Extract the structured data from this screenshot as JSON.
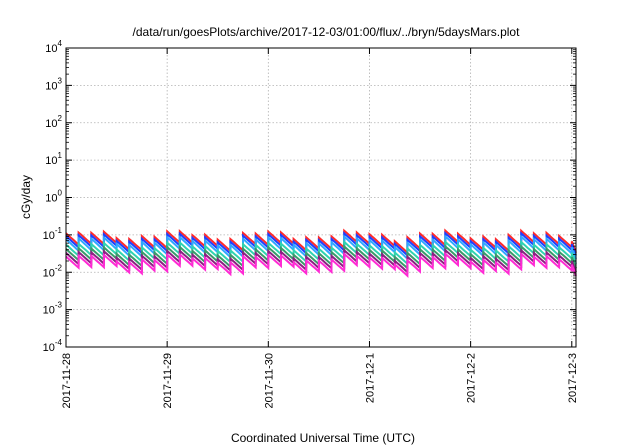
{
  "chart_data": {
    "type": "line",
    "title": "/data/run/goesPlots/archive/2017-12-03/01:00/flux/../bryn/5daysMars.plot",
    "xlabel": "Coordinated Universal Time (UTC)",
    "ylabel": "cGy/day",
    "yscale": "log",
    "ylim": [
      0.0001,
      10000
    ],
    "y_ticks": [
      {
        "base": "10",
        "exp": "4",
        "value": 10000
      },
      {
        "base": "10",
        "exp": "3",
        "value": 1000
      },
      {
        "base": "10",
        "exp": "2",
        "value": 100
      },
      {
        "base": "10",
        "exp": "1",
        "value": 10
      },
      {
        "base": "10",
        "exp": "0",
        "value": 1
      },
      {
        "base": "10",
        "exp": "-1",
        "value": 0.1
      },
      {
        "base": "10",
        "exp": "-2",
        "value": 0.01
      },
      {
        "base": "10",
        "exp": "-3",
        "value": 0.001
      },
      {
        "base": "10",
        "exp": "-4",
        "value": 0.0001
      }
    ],
    "xlim": [
      "2017-11-28",
      "2017-12-03 01:00"
    ],
    "x_ticks": [
      "2017-11-28",
      "2017-11-29",
      "2017-11-30",
      "2017-12-1",
      "2017-12-2",
      "2017-12-3"
    ],
    "grid": true,
    "cycle_hours": 3,
    "series": [
      {
        "color": "#ff2a2a",
        "peak": 0.1,
        "trough": 0.05
      },
      {
        "color": "#1f3fff",
        "peak": 0.085,
        "trough": 0.042
      },
      {
        "color": "#2fa8ff",
        "peak": 0.07,
        "trough": 0.034
      },
      {
        "color": "#2fd4b0",
        "peak": 0.05,
        "trough": 0.025
      },
      {
        "color": "#3a9a6a",
        "peak": 0.038,
        "trough": 0.019
      },
      {
        "color": "#8a2080",
        "peak": 0.03,
        "trough": 0.015
      },
      {
        "color": "#ff2ad4",
        "peak": 0.024,
        "trough": 0.012
      }
    ]
  }
}
